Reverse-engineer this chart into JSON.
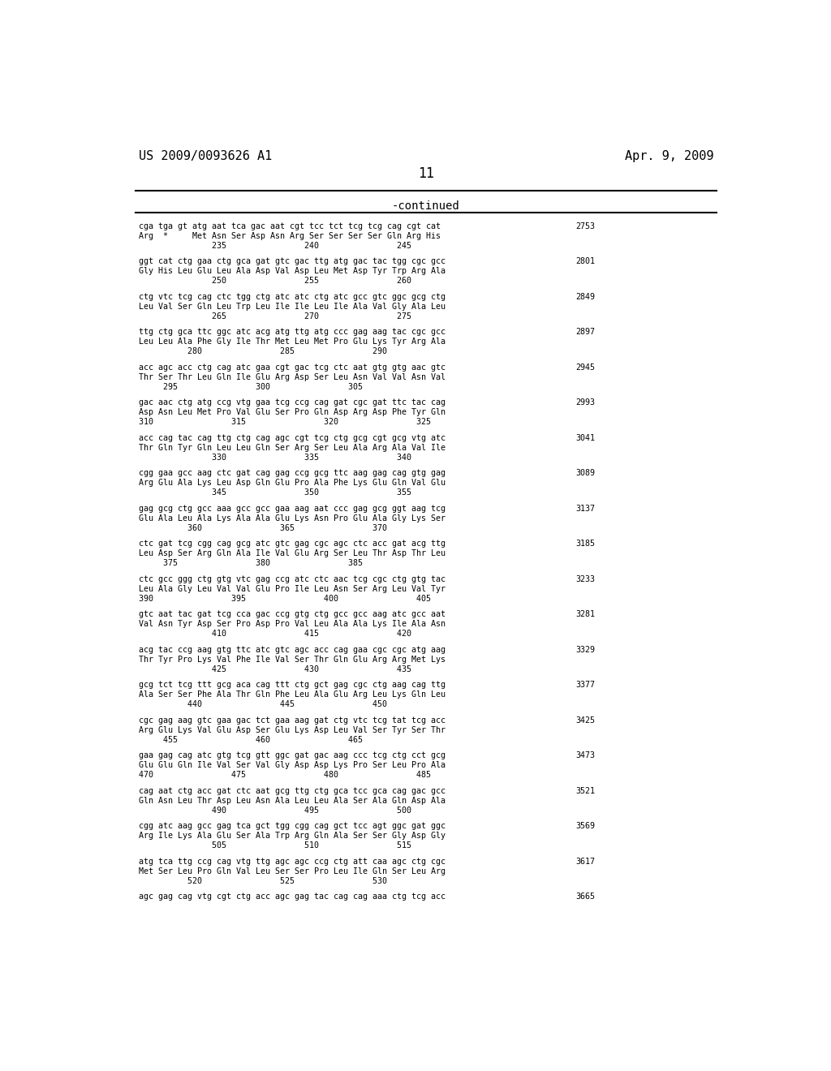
{
  "title_left": "US 2009/0093626 A1",
  "title_right": "Apr. 9, 2009",
  "page_number": "11",
  "continued_label": "-continued",
  "background_color": "#ffffff",
  "text_color": "#000000",
  "font_family": "monospace",
  "header_fontsize": 11,
  "page_num_fontsize": 12,
  "continued_fontsize": 10,
  "body_fontsize": 7.2,
  "entries": [
    {
      "dna": "cga tga gt atg aat tca gac aat cgt tcc tct tcg tcg cag cgt cat",
      "aa": "Arg  *     Met Asn Ser Asp Asn Arg Ser Ser Ser Ser Gln Arg His",
      "nums": "               235                240                245",
      "bp": "2753"
    },
    {
      "dna": "ggt cat ctg gaa ctg gca gat gtc gac ttg atg gac tac tgg cgc gcc",
      "aa": "Gly His Leu Glu Leu Ala Asp Val Asp Leu Met Asp Tyr Trp Arg Ala",
      "nums": "               250                255                260",
      "bp": "2801"
    },
    {
      "dna": "ctg vtc tcg cag ctc tgg ctg atc atc ctg atc gcc gtc ggc gcg ctg",
      "aa": "Leu Val Ser Gln Leu Trp Leu Ile Ile Leu Ile Ala Val Gly Ala Leu",
      "nums": "               265                270                275",
      "bp": "2849"
    },
    {
      "dna": "ttg ctg gca ttc ggc atc acg atg ttg atg ccc gag aag tac cgc gcc",
      "aa": "Leu Leu Ala Phe Gly Ile Thr Met Leu Met Pro Glu Lys Tyr Arg Ala",
      "nums": "          280                285                290",
      "bp": "2897"
    },
    {
      "dna": "acc agc acc ctg cag atc gaa cgt gac tcg ctc aat gtg gtg aac gtc",
      "aa": "Thr Ser Thr Leu Gln Ile Glu Arg Asp Ser Leu Asn Val Val Asn Val",
      "nums": "     295                300                305",
      "bp": "2945"
    },
    {
      "dna": "gac aac ctg atg ccg vtg gaa tcg ccg cag gat cgc gat ttc tac cag",
      "aa": "Asp Asn Leu Met Pro Val Glu Ser Pro Gln Asp Arg Asp Phe Tyr Gln",
      "nums": "310                315                320                325",
      "bp": "2993"
    },
    {
      "dna": "acc cag tac cag ttg ctg cag agc cgt tcg ctg gcg cgt gcg vtg atc",
      "aa": "Thr Gln Tyr Gln Leu Leu Gln Ser Arg Ser Leu Ala Arg Ala Val Ile",
      "nums": "               330                335                340",
      "bp": "3041"
    },
    {
      "dna": "cgg gaa gcc aag ctc gat cag gag ccg gcg ttc aag gag cag gtg gag",
      "aa": "Arg Glu Ala Lys Leu Asp Gln Glu Pro Ala Phe Lys Glu Gln Val Glu",
      "nums": "               345                350                355",
      "bp": "3089"
    },
    {
      "dna": "gag gcg ctg gcc aaa gcc gcc gaa aag aat ccc gag gcg ggt aag tcg",
      "aa": "Glu Ala Leu Ala Lys Ala Ala Glu Lys Asn Pro Glu Ala Gly Lys Ser",
      "nums": "          360                365                370",
      "bp": "3137"
    },
    {
      "dna": "ctc gat tcg cgg cag gcg atc gtc gag cgc agc ctc acc gat acg ttg",
      "aa": "Leu Asp Ser Arg Gln Ala Ile Val Glu Arg Ser Leu Thr Asp Thr Leu",
      "nums": "     375                380                385",
      "bp": "3185"
    },
    {
      "dna": "ctc gcc ggg ctg gtg vtc gag ccg atc ctc aac tcg cgc ctg gtg tac",
      "aa": "Leu Ala Gly Leu Val Val Glu Pro Ile Leu Asn Ser Arg Leu Val Tyr",
      "nums": "390                395                400                405",
      "bp": "3233"
    },
    {
      "dna": "gtc aat tac gat tcg cca gac ccg gtg ctg gcc gcc aag atc gcc aat",
      "aa": "Val Asn Tyr Asp Ser Pro Asp Pro Val Leu Ala Ala Lys Ile Ala Asn",
      "nums": "               410                415                420",
      "bp": "3281"
    },
    {
      "dna": "acg tac ccg aag gtg ttc atc gtc agc acc cag gaa cgc cgc atg aag",
      "aa": "Thr Tyr Pro Lys Val Phe Ile Val Ser Thr Gln Glu Arg Arg Met Lys",
      "nums": "               425                430                435",
      "bp": "3329"
    },
    {
      "dna": "gcg tct tcg ttt gcg aca cag ttt ctg gct gag cgc ctg aag cag ttg",
      "aa": "Ala Ser Ser Phe Ala Thr Gln Phe Leu Ala Glu Arg Leu Lys Gln Leu",
      "nums": "          440                445                450",
      "bp": "3377"
    },
    {
      "dna": "cgc gag aag gtc gaa gac tct gaa aag gat ctg vtc tcg tat tcg acc",
      "aa": "Arg Glu Lys Val Glu Asp Ser Glu Lys Asp Leu Val Ser Tyr Ser Thr",
      "nums": "     455                460                465",
      "bp": "3425"
    },
    {
      "dna": "gaa gag cag atc gtg tcg gtt ggc gat gac aag ccc tcg ctg cct gcg",
      "aa": "Glu Glu Gln Ile Val Ser Val Gly Asp Asp Lys Pro Ser Leu Pro Ala",
      "nums": "470                475                480                485",
      "bp": "3473"
    },
    {
      "dna": "cag aat ctg acc gat ctc aat gcg ttg ctg gca tcc gca cag gac gcc",
      "aa": "Gln Asn Leu Thr Asp Leu Asn Ala Leu Leu Ala Ser Ala Gln Asp Ala",
      "nums": "               490                495                500",
      "bp": "3521"
    },
    {
      "dna": "cgg atc aag gcc gag tca gct tgg cgg cag gct tcc agt ggc gat ggc",
      "aa": "Arg Ile Lys Ala Glu Ser Ala Trp Arg Gln Ala Ser Ser Gly Asp Gly",
      "nums": "               505                510                515",
      "bp": "3569"
    },
    {
      "dna": "atg tca ttg ccg cag vtg ttg agc agc ccg ctg att caa agc ctg cgc",
      "aa": "Met Ser Leu Pro Gln Val Leu Ser Ser Pro Leu Ile Gln Ser Leu Arg",
      "nums": "          520                525                530",
      "bp": "3617"
    },
    {
      "dna": "agc gag cag vtg cgt ctg acc agc gag tac cag cag aaa ctg tcg acc",
      "aa": "",
      "nums": "",
      "bp": "3665"
    }
  ]
}
